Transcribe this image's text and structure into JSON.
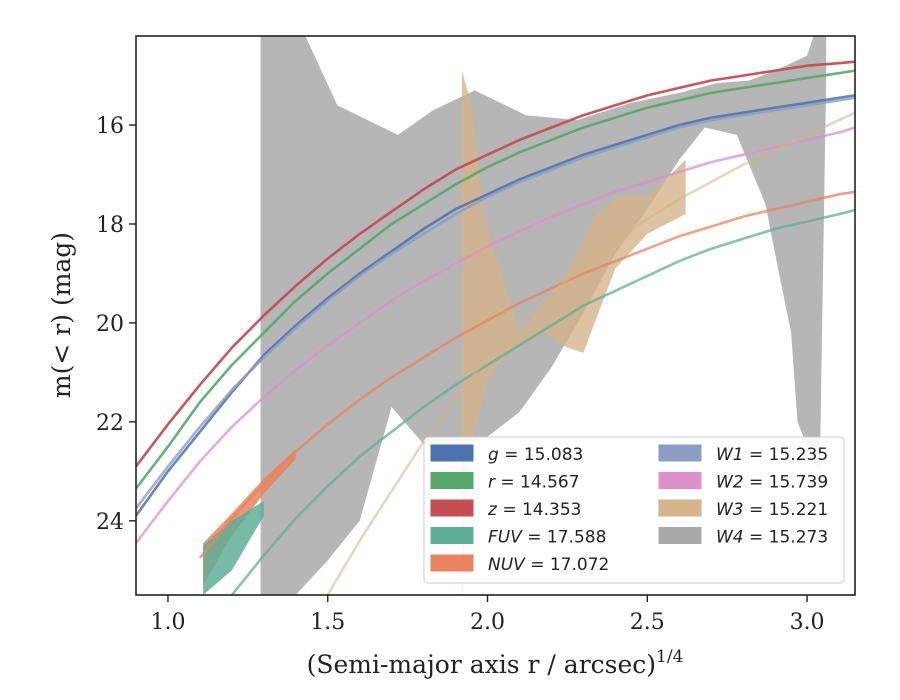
{
  "chart_data": {
    "type": "line",
    "title": "",
    "xlabel": "(Semi-major axis r / arcsec)",
    "xlabel_exponent": "1/4",
    "ylabel": "m(< r) (mag)",
    "xlim": [
      0.9,
      3.15
    ],
    "ylim": [
      25.5,
      14.2
    ],
    "y_inverted": true,
    "grid": false,
    "legend_position": "lower-right",
    "legend_columns": 2,
    "x_ticks": [
      1.0,
      1.5,
      2.0,
      2.5,
      3.0
    ],
    "x_tick_labels": [
      "1.0",
      "1.5",
      "2.0",
      "2.5",
      "3.0"
    ],
    "y_ticks": [
      16,
      18,
      20,
      22,
      24
    ],
    "y_tick_labels": [
      "16",
      "18",
      "20",
      "22",
      "24"
    ],
    "series": [
      {
        "name": "g = 15.083",
        "color": "#4c72b0",
        "curve_opacity": 0.85,
        "x": [
          0.9,
          1.0,
          1.1,
          1.2,
          1.3,
          1.4,
          1.5,
          1.6,
          1.7,
          1.8,
          1.9,
          2.0,
          2.1,
          2.2,
          2.3,
          2.4,
          2.5,
          2.6,
          2.7,
          2.8,
          2.9,
          3.0,
          3.1,
          3.15
        ],
        "y": [
          23.9,
          23.0,
          22.2,
          21.4,
          20.65,
          20.05,
          19.5,
          19.0,
          18.55,
          18.1,
          17.7,
          17.4,
          17.1,
          16.85,
          16.6,
          16.4,
          16.2,
          16.0,
          15.85,
          15.75,
          15.65,
          15.55,
          15.45,
          15.4
        ]
      },
      {
        "name": "r = 14.567",
        "color": "#55a868",
        "curve_opacity": 0.9,
        "x": [
          0.9,
          1.0,
          1.1,
          1.2,
          1.3,
          1.4,
          1.5,
          1.6,
          1.7,
          1.8,
          1.9,
          2.0,
          2.1,
          2.2,
          2.3,
          2.4,
          2.5,
          2.6,
          2.7,
          2.8,
          2.9,
          3.0,
          3.1,
          3.15
        ],
        "y": [
          23.35,
          22.5,
          21.6,
          20.85,
          20.2,
          19.55,
          19.0,
          18.5,
          18.0,
          17.6,
          17.2,
          16.85,
          16.55,
          16.3,
          16.05,
          15.85,
          15.65,
          15.5,
          15.35,
          15.25,
          15.15,
          15.05,
          14.95,
          14.9
        ]
      },
      {
        "name": "z = 14.353",
        "color": "#c44e52",
        "curve_opacity": 0.95,
        "x": [
          0.9,
          1.0,
          1.1,
          1.2,
          1.3,
          1.4,
          1.5,
          1.6,
          1.7,
          1.8,
          1.9,
          2.0,
          2.1,
          2.2,
          2.3,
          2.4,
          2.5,
          2.6,
          2.7,
          2.8,
          2.9,
          3.0,
          3.1,
          3.15
        ],
        "y": [
          22.9,
          22.05,
          21.25,
          20.5,
          19.85,
          19.25,
          18.7,
          18.2,
          17.75,
          17.3,
          16.9,
          16.6,
          16.3,
          16.05,
          15.8,
          15.6,
          15.4,
          15.25,
          15.1,
          15.0,
          14.9,
          14.8,
          14.75,
          14.72
        ]
      },
      {
        "name": "FUV = 17.588",
        "color": "#5fae98",
        "curve_opacity": 0.75,
        "x": [
          1.2,
          1.3,
          1.4,
          1.5,
          1.6,
          1.7,
          1.8,
          1.9,
          2.0,
          2.1,
          2.2,
          2.3,
          2.4,
          2.5,
          2.6,
          2.7,
          2.8,
          2.9,
          3.0,
          3.1,
          3.15
        ],
        "y": [
          25.5,
          24.7,
          23.95,
          23.3,
          22.7,
          22.2,
          21.7,
          21.25,
          20.85,
          20.45,
          20.05,
          19.65,
          19.35,
          19.05,
          18.75,
          18.5,
          18.3,
          18.1,
          17.95,
          17.8,
          17.72
        ]
      },
      {
        "name": "NUV = 17.072",
        "color": "#e8845d",
        "curve_opacity": 0.75,
        "x": [
          1.1,
          1.2,
          1.3,
          1.4,
          1.5,
          1.6,
          1.7,
          1.8,
          1.9,
          2.0,
          2.1,
          2.2,
          2.3,
          2.4,
          2.5,
          2.6,
          2.7,
          2.8,
          2.9,
          3.0,
          3.1,
          3.15
        ],
        "y": [
          24.75,
          23.95,
          23.25,
          22.6,
          22.05,
          21.55,
          21.1,
          20.7,
          20.3,
          19.95,
          19.6,
          19.3,
          19.0,
          18.75,
          18.5,
          18.25,
          18.05,
          17.85,
          17.7,
          17.55,
          17.4,
          17.35
        ]
      },
      {
        "name": "W1 = 15.235",
        "color": "#8c9cc3",
        "curve_opacity": 0.8,
        "x": [
          0.9,
          1.0,
          1.1,
          1.2,
          1.3,
          1.4,
          1.5,
          1.6,
          1.7,
          1.8,
          1.9,
          2.0,
          2.1,
          2.2,
          2.3,
          2.4,
          2.5,
          2.6,
          2.7,
          2.8,
          2.9,
          3.0,
          3.1,
          3.15
        ],
        "y": [
          23.75,
          22.9,
          22.1,
          21.35,
          20.7,
          20.1,
          19.55,
          19.05,
          18.6,
          18.2,
          17.8,
          17.45,
          17.15,
          16.9,
          16.65,
          16.45,
          16.25,
          16.05,
          15.9,
          15.8,
          15.7,
          15.6,
          15.5,
          15.45
        ]
      },
      {
        "name": "W2 = 15.739",
        "color": "#dd8fc9",
        "curve_opacity": 0.75,
        "x": [
          0.9,
          1.0,
          1.1,
          1.2,
          1.3,
          1.4,
          1.5,
          1.6,
          1.7,
          1.8,
          1.9,
          2.0,
          2.1,
          2.2,
          2.3,
          2.4,
          2.5,
          2.6,
          2.7,
          2.8,
          2.9,
          3.0,
          3.1,
          3.15
        ],
        "y": [
          24.45,
          23.6,
          22.8,
          22.1,
          21.5,
          20.95,
          20.45,
          20.0,
          19.55,
          19.15,
          18.8,
          18.45,
          18.15,
          17.85,
          17.6,
          17.35,
          17.15,
          16.95,
          16.75,
          16.6,
          16.45,
          16.3,
          16.15,
          16.05
        ]
      },
      {
        "name": "W3 = 15.221",
        "color": "#d4b48a",
        "curve_opacity": 0.55,
        "x": [
          1.5,
          1.6,
          1.7,
          1.8,
          1.9,
          2.0,
          2.1,
          2.2,
          2.3,
          2.4,
          2.5,
          2.6,
          2.7,
          2.8,
          2.9,
          3.0,
          3.1,
          3.15
        ],
        "y": [
          25.5,
          24.4,
          23.4,
          22.4,
          21.5,
          20.7,
          20.0,
          19.4,
          18.85,
          18.35,
          17.9,
          17.5,
          17.15,
          16.8,
          16.5,
          16.2,
          15.9,
          15.75
        ]
      }
    ],
    "bands": [
      {
        "name": "W4 = 15.273",
        "color": "#a9a9a9",
        "opacity": 0.85,
        "legend": true,
        "x": [
          1.29,
          1.29,
          1.38,
          1.43,
          1.53,
          1.72,
          1.83,
          1.96,
          2.12,
          2.28,
          2.45,
          2.6,
          2.72,
          2.82,
          2.9,
          3.0,
          3.02,
          3.06,
          3.06,
          3.04,
          3.02,
          2.97,
          2.95,
          2.9,
          2.87,
          2.78,
          2.68,
          2.6,
          2.5,
          2.4,
          2.3,
          2.2,
          2.1,
          2.0,
          1.9,
          1.8,
          1.7,
          1.6,
          1.5,
          1.4,
          1.35,
          1.29
        ],
        "y": [
          14.2,
          14.2,
          14.2,
          14.2,
          15.6,
          16.2,
          15.7,
          15.3,
          15.8,
          15.9,
          15.55,
          15.35,
          15.15,
          15.1,
          14.9,
          14.6,
          14.2,
          14.2,
          15.0,
          23.0,
          22.8,
          22.0,
          20.2,
          18.6,
          17.6,
          16.2,
          16.05,
          16.7,
          17.7,
          18.6,
          19.8,
          20.9,
          21.8,
          22.3,
          22.5,
          22.45,
          21.7,
          24.0,
          24.8,
          25.5,
          25.5,
          25.5
        ]
      },
      {
        "name": "W3 = 15.221",
        "color": "#d4b48a",
        "opacity": 0.8,
        "legend": false,
        "x": [
          1.92,
          1.92,
          1.95,
          1.99,
          2.1,
          2.23,
          2.34,
          2.41,
          2.51,
          2.62,
          2.62,
          2.5,
          2.4,
          2.3,
          2.25,
          2.18,
          2.08,
          2.0,
          1.94,
          1.92
        ],
        "y": [
          25.5,
          14.9,
          15.6,
          17.9,
          20.2,
          19.2,
          17.8,
          17.45,
          17.4,
          16.7,
          17.8,
          18.2,
          18.9,
          20.6,
          20.5,
          20.2,
          20.5,
          21.1,
          22.8,
          25.5
        ]
      },
      {
        "name": "NUV = 17.072",
        "color": "#e8845d",
        "opacity": 0.85,
        "legend": false,
        "x": [
          1.11,
          1.2,
          1.3,
          1.4,
          1.4,
          1.3,
          1.2,
          1.11
        ],
        "y": [
          24.45,
          23.85,
          23.15,
          22.55,
          22.75,
          23.45,
          24.3,
          25.3
        ]
      },
      {
        "name": "FUV = 17.588",
        "color": "#5fae98",
        "opacity": 0.85,
        "legend": false,
        "x": [
          1.11,
          1.2,
          1.3,
          1.3,
          1.2,
          1.11
        ],
        "y": [
          24.5,
          24.0,
          23.6,
          23.9,
          25.0,
          25.5
        ]
      }
    ],
    "legend": [
      {
        "name": "g = 15.083",
        "var": "g",
        "value": "15.083",
        "color": "#4c72b0"
      },
      {
        "name": "r = 14.567",
        "var": "r",
        "value": "14.567",
        "color": "#55a868"
      },
      {
        "name": "z = 14.353",
        "var": "z",
        "value": "14.353",
        "color": "#c44e52"
      },
      {
        "name": "FUV = 17.588",
        "var": "FUV",
        "value": "17.588",
        "color": "#5fae98"
      },
      {
        "name": "NUV = 17.072",
        "var": "NUV",
        "value": "17.072",
        "color": "#e8845d"
      },
      {
        "name": "W1 = 15.235",
        "var": "W1",
        "value": "15.235",
        "color": "#8c9cc3"
      },
      {
        "name": "W2 = 15.739",
        "var": "W2",
        "value": "15.739",
        "color": "#dd8fc9"
      },
      {
        "name": "W3 = 15.221",
        "var": "W3",
        "value": "15.221",
        "color": "#d4b48a"
      },
      {
        "name": "W4 = 15.273",
        "var": "W4",
        "value": "15.273",
        "color": "#a9a9a9"
      }
    ]
  }
}
